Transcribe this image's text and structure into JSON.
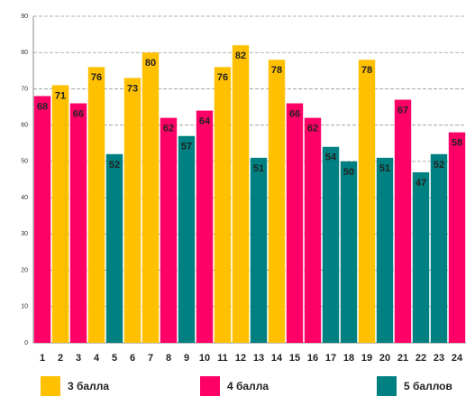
{
  "chart_data": {
    "type": "bar",
    "categories": [
      "1",
      "2",
      "3",
      "4",
      "5",
      "6",
      "7",
      "8",
      "9",
      "10",
      "11",
      "12",
      "13",
      "14",
      "15",
      "16",
      "17",
      "18",
      "19",
      "20",
      "21",
      "22",
      "23",
      "24"
    ],
    "series": [
      {
        "name": "3 балла",
        "color": "#ffc000",
        "values": [
          null,
          71,
          null,
          76,
          null,
          73,
          80,
          null,
          null,
          null,
          76,
          82,
          null,
          78,
          null,
          null,
          null,
          null,
          78,
          null,
          null,
          null,
          null,
          null
        ]
      },
      {
        "name": "4 балла",
        "color": "#ff0066",
        "values": [
          68,
          null,
          66,
          null,
          null,
          null,
          null,
          62,
          null,
          64,
          null,
          null,
          null,
          null,
          66,
          62,
          null,
          null,
          null,
          null,
          67,
          null,
          null,
          58
        ]
      },
      {
        "name": "5 баллов",
        "color": "#008080",
        "values": [
          null,
          null,
          null,
          null,
          52,
          null,
          null,
          null,
          57,
          null,
          null,
          null,
          51,
          null,
          null,
          null,
          54,
          50,
          null,
          51,
          null,
          47,
          52,
          null
        ]
      }
    ],
    "ylim": [
      0,
      90
    ],
    "yticks": [
      0,
      10,
      20,
      30,
      40,
      50,
      60,
      70,
      80,
      90
    ],
    "grid": true
  }
}
